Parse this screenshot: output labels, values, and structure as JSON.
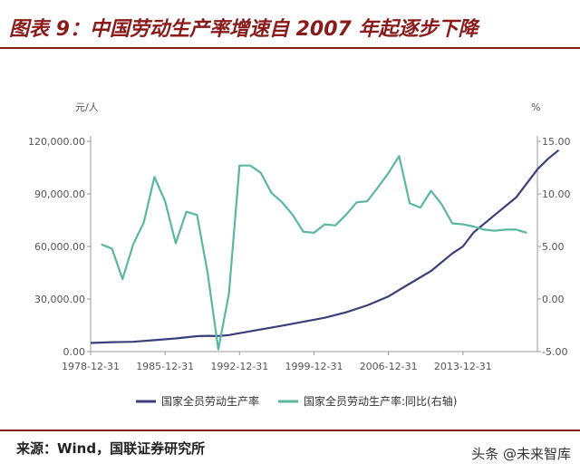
{
  "figure": {
    "title": "图表 9：中国劳动生产率增速自 2007 年起逐步下降",
    "source": "来源：Wind，国联证券研究所",
    "watermark": "头条 @未来智库"
  },
  "chart_data": {
    "type": "line",
    "y_left_unit": "元/人",
    "y_right_unit": "%",
    "y_left_lim": [
      0,
      120000
    ],
    "y_right_lim": [
      -5,
      15
    ],
    "y_left_ticks": [
      "120,000.00",
      "90,000.00",
      "60,000.00",
      "30,000.00",
      "0.00"
    ],
    "y_right_ticks": [
      "15.00",
      "10.00",
      "5.00",
      "0.00",
      "-5.00"
    ],
    "x_ticks": [
      "1978-12-31",
      "1985-12-31",
      "1992-12-31",
      "1999-12-31",
      "2006-12-31",
      "2013-12-31"
    ],
    "x_range": [
      1978,
      2020
    ],
    "grid": false,
    "legend_position": "bottom",
    "series": [
      {
        "name": "国家全员劳动生产率",
        "axis": "left",
        "color": "#3b3f7a",
        "points": [
          [
            1978,
            4900
          ],
          [
            1980,
            5400
          ],
          [
            1982,
            5600
          ],
          [
            1984,
            6500
          ],
          [
            1986,
            7500
          ],
          [
            1988,
            8800
          ],
          [
            1989,
            9000
          ],
          [
            1990,
            8900
          ],
          [
            1991,
            9400
          ],
          [
            1992,
            10500
          ],
          [
            1994,
            12600
          ],
          [
            1996,
            14800
          ],
          [
            1998,
            17000
          ],
          [
            2000,
            19300
          ],
          [
            2002,
            22400
          ],
          [
            2004,
            26400
          ],
          [
            2006,
            31500
          ],
          [
            2008,
            38800
          ],
          [
            2010,
            46000
          ],
          [
            2012,
            56000
          ],
          [
            2013,
            60000
          ],
          [
            2014,
            68000
          ],
          [
            2016,
            78000
          ],
          [
            2018,
            88000
          ],
          [
            2020,
            104000
          ],
          [
            2021,
            110000
          ],
          [
            2022,
            115000
          ]
        ]
      },
      {
        "name": "国家全员劳动生产率:同比(右轴)",
        "axis": "right",
        "color": "#5bb8a0",
        "points": [
          [
            1979,
            5.2
          ],
          [
            1980,
            4.8
          ],
          [
            1981,
            1.9
          ],
          [
            1982,
            5.2
          ],
          [
            1983,
            7.3
          ],
          [
            1984,
            11.6
          ],
          [
            1985,
            9.3
          ],
          [
            1986,
            5.3
          ],
          [
            1987,
            8.3
          ],
          [
            1988,
            8.0
          ],
          [
            1989,
            2.5
          ],
          [
            1990,
            -4.8
          ],
          [
            1991,
            0.5
          ],
          [
            1992,
            12.7
          ],
          [
            1993,
            12.7
          ],
          [
            1994,
            12.0
          ],
          [
            1995,
            10.1
          ],
          [
            1996,
            9.2
          ],
          [
            1997,
            8.0
          ],
          [
            1998,
            6.4
          ],
          [
            1999,
            6.3
          ],
          [
            2000,
            7.1
          ],
          [
            2001,
            7.0
          ],
          [
            2002,
            8.0
          ],
          [
            2003,
            9.2
          ],
          [
            2004,
            9.3
          ],
          [
            2005,
            10.6
          ],
          [
            2006,
            12.0
          ],
          [
            2007,
            13.6
          ],
          [
            2008,
            9.1
          ],
          [
            2009,
            8.7
          ],
          [
            2010,
            10.3
          ],
          [
            2011,
            9.0
          ],
          [
            2012,
            7.2
          ],
          [
            2013,
            7.1
          ],
          [
            2014,
            6.9
          ],
          [
            2015,
            6.6
          ],
          [
            2016,
            6.5
          ],
          [
            2017,
            6.6
          ],
          [
            2018,
            6.6
          ],
          [
            2019,
            6.3
          ]
        ]
      }
    ]
  }
}
